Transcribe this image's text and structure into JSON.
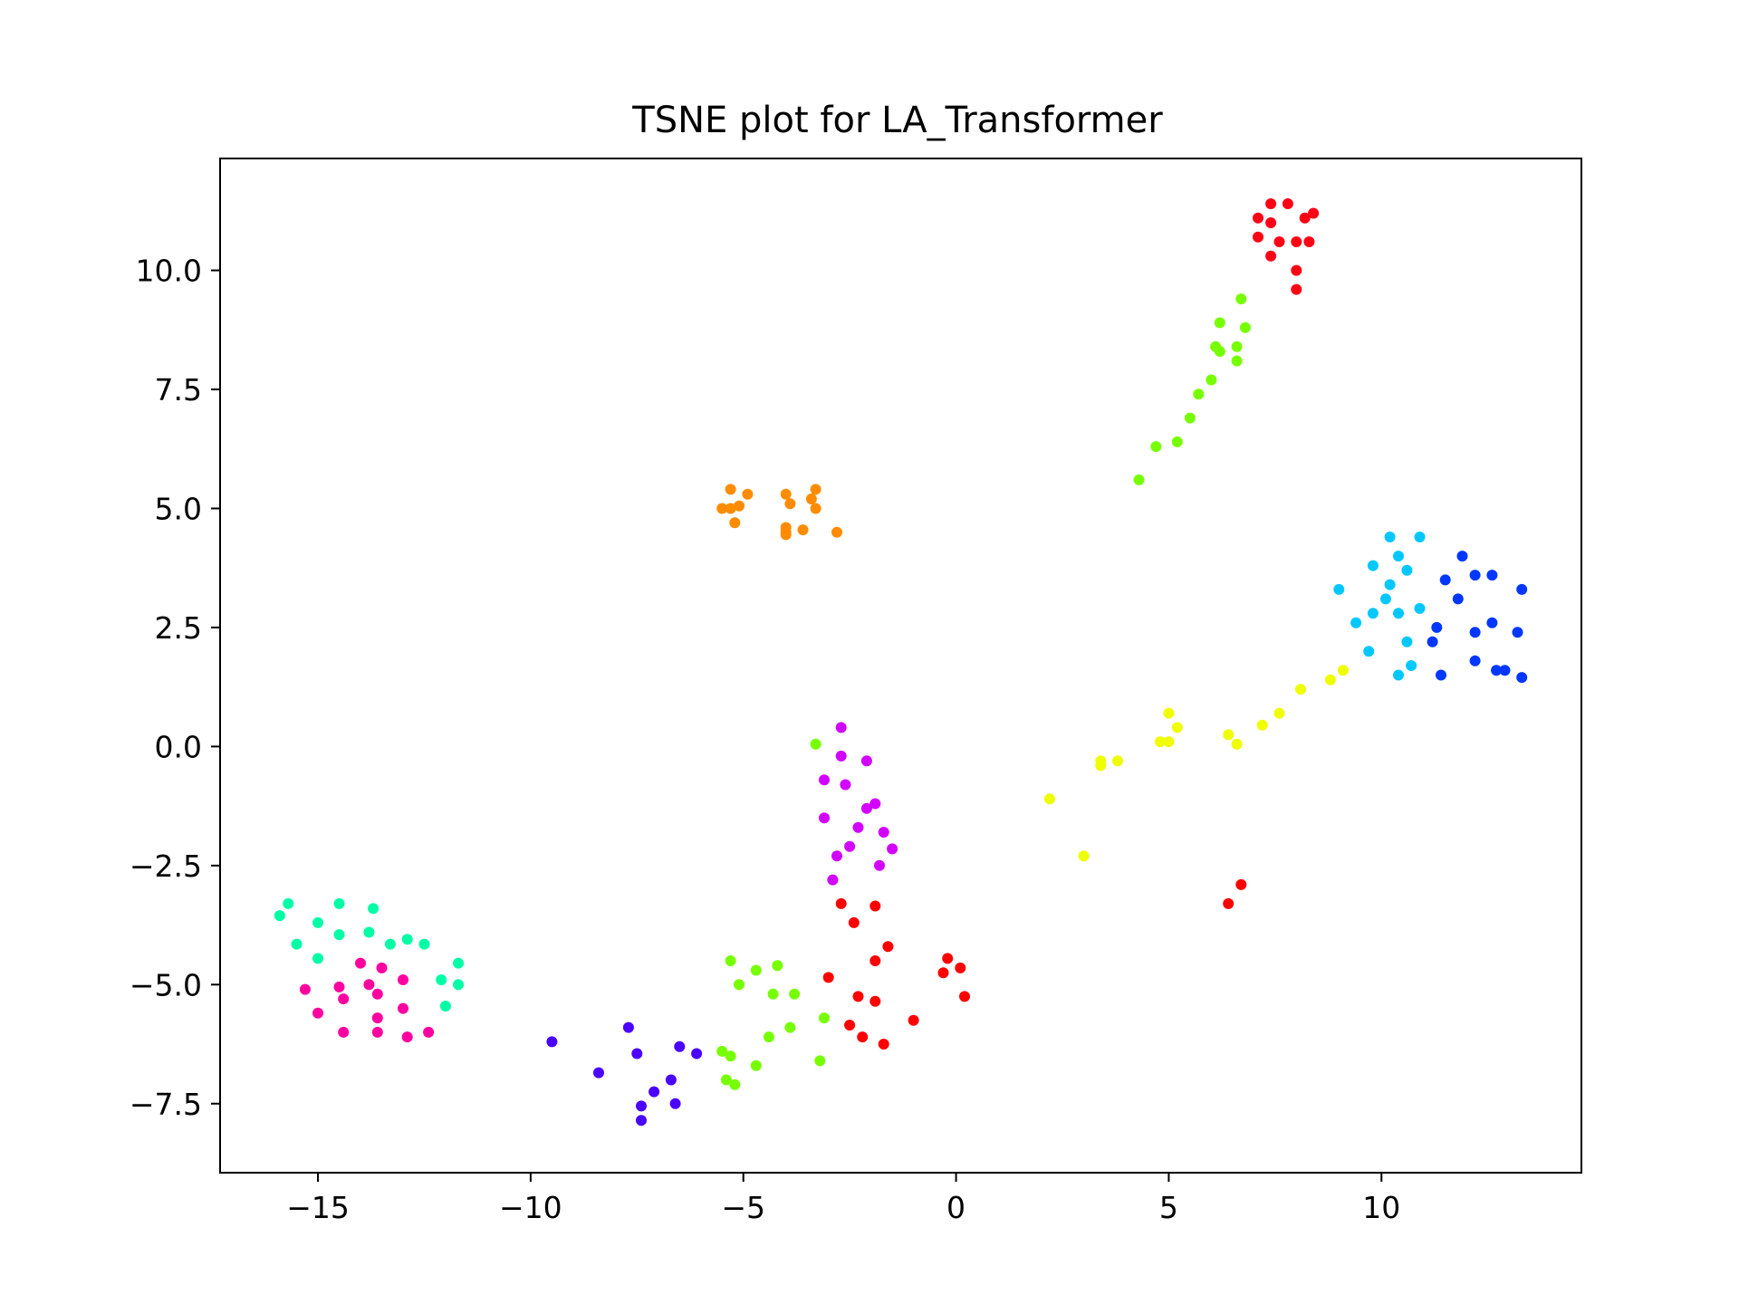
{
  "chart_data": {
    "type": "scatter",
    "title": "TSNE plot for LA_Transformer",
    "xlabel": "",
    "ylabel": "",
    "xlim": [
      -17.3,
      14.7
    ],
    "ylim": [
      -8.95,
      12.35
    ],
    "xticks": [
      -15,
      -10,
      -5,
      0,
      5,
      10
    ],
    "xtick_labels": [
      "−15",
      "−10",
      "−5",
      "0",
      "5",
      "10"
    ],
    "yticks": [
      -7.5,
      -5.0,
      -2.5,
      0.0,
      2.5,
      5.0,
      7.5,
      10.0
    ],
    "ytick_labels": [
      "−7.5",
      "−5.0",
      "−2.5",
      "0.0",
      "2.5",
      "5.0",
      "7.5",
      "10.0"
    ],
    "grid": false,
    "legend": "none",
    "series": [
      {
        "color": "#ff0015",
        "points": [
          [
            7.1,
            11.1
          ],
          [
            7.4,
            11.4
          ],
          [
            7.8,
            11.4
          ],
          [
            8.4,
            11.2
          ],
          [
            7.4,
            11.0
          ],
          [
            8.2,
            11.1
          ],
          [
            7.1,
            10.7
          ],
          [
            7.6,
            10.6
          ],
          [
            8.0,
            10.6
          ],
          [
            8.3,
            10.6
          ],
          [
            7.4,
            10.3
          ],
          [
            8.0,
            10.0
          ],
          [
            8.0,
            9.6
          ]
        ]
      },
      {
        "color": "#77ff00",
        "points": [
          [
            6.7,
            9.4
          ],
          [
            6.2,
            8.9
          ],
          [
            6.8,
            8.8
          ],
          [
            6.1,
            8.4
          ],
          [
            6.2,
            8.3
          ],
          [
            6.6,
            8.4
          ],
          [
            6.6,
            8.1
          ],
          [
            6.0,
            7.7
          ],
          [
            5.7,
            7.4
          ],
          [
            5.5,
            6.9
          ],
          [
            5.2,
            6.4
          ],
          [
            4.7,
            6.3
          ],
          [
            4.3,
            5.6
          ],
          [
            -3.3,
            0.05
          ],
          [
            -5.3,
            -4.5
          ],
          [
            -4.7,
            -4.7
          ],
          [
            -4.2,
            -4.6
          ],
          [
            -5.1,
            -5.0
          ],
          [
            -4.3,
            -5.2
          ],
          [
            -3.8,
            -5.2
          ],
          [
            -3.1,
            -5.7
          ],
          [
            -4.4,
            -6.1
          ],
          [
            -3.9,
            -5.9
          ],
          [
            -5.5,
            -6.4
          ],
          [
            -5.3,
            -6.5
          ],
          [
            -4.7,
            -6.7
          ],
          [
            -3.2,
            -6.6
          ],
          [
            -5.4,
            -7.0
          ],
          [
            -5.2,
            -7.1
          ]
        ]
      },
      {
        "color": "#ff8c00",
        "points": [
          [
            -5.3,
            5.4
          ],
          [
            -3.3,
            5.4
          ],
          [
            -4.9,
            5.3
          ],
          [
            -4.0,
            5.3
          ],
          [
            -3.4,
            5.2
          ],
          [
            -3.9,
            5.1
          ],
          [
            -5.1,
            5.05
          ],
          [
            -5.5,
            5.0
          ],
          [
            -5.3,
            5.0
          ],
          [
            -3.3,
            5.0
          ],
          [
            -5.2,
            4.7
          ],
          [
            -4.0,
            4.6
          ],
          [
            -3.6,
            4.55
          ],
          [
            -2.8,
            4.5
          ],
          [
            -4.0,
            4.45
          ],
          [
            -4.0,
            4.5
          ]
        ]
      },
      {
        "color": "#00c8ff",
        "points": [
          [
            10.2,
            4.4
          ],
          [
            10.9,
            4.4
          ],
          [
            10.4,
            4.0
          ],
          [
            9.8,
            3.8
          ],
          [
            10.6,
            3.7
          ],
          [
            10.2,
            3.4
          ],
          [
            9.0,
            3.3
          ],
          [
            10.1,
            3.1
          ],
          [
            9.8,
            2.8
          ],
          [
            10.4,
            2.8
          ],
          [
            10.9,
            2.9
          ],
          [
            9.4,
            2.6
          ],
          [
            10.6,
            2.2
          ],
          [
            9.7,
            2.0
          ],
          [
            10.7,
            1.7
          ],
          [
            10.4,
            1.5
          ]
        ]
      },
      {
        "color": "#0037ff",
        "points": [
          [
            11.9,
            4.0
          ],
          [
            11.5,
            3.5
          ],
          [
            12.2,
            3.6
          ],
          [
            12.6,
            3.6
          ],
          [
            13.3,
            3.3
          ],
          [
            11.8,
            3.1
          ],
          [
            11.3,
            2.5
          ],
          [
            12.6,
            2.6
          ],
          [
            12.2,
            2.4
          ],
          [
            13.2,
            2.4
          ],
          [
            11.2,
            2.2
          ],
          [
            12.2,
            1.8
          ],
          [
            12.7,
            1.6
          ],
          [
            12.9,
            1.6
          ],
          [
            11.4,
            1.5
          ],
          [
            13.3,
            1.45
          ]
        ]
      },
      {
        "color": "#f0ff00",
        "points": [
          [
            9.1,
            1.6
          ],
          [
            8.8,
            1.4
          ],
          [
            8.1,
            1.2
          ],
          [
            7.6,
            0.7
          ],
          [
            5.0,
            0.7
          ],
          [
            7.2,
            0.45
          ],
          [
            5.2,
            0.4
          ],
          [
            6.4,
            0.25
          ],
          [
            4.8,
            0.1
          ],
          [
            5.0,
            0.1
          ],
          [
            6.6,
            0.05
          ],
          [
            3.8,
            -0.3
          ],
          [
            3.4,
            -0.3
          ],
          [
            3.4,
            -0.4
          ],
          [
            2.2,
            -1.1
          ],
          [
            3.0,
            -2.3
          ]
        ]
      },
      {
        "color": "#d200ff",
        "points": [
          [
            -2.7,
            0.4
          ],
          [
            -2.7,
            -0.2
          ],
          [
            -2.1,
            -0.3
          ],
          [
            -3.1,
            -0.7
          ],
          [
            -2.6,
            -0.8
          ],
          [
            -1.9,
            -1.2
          ],
          [
            -2.1,
            -1.3
          ],
          [
            -3.1,
            -1.5
          ],
          [
            -2.3,
            -1.7
          ],
          [
            -1.7,
            -1.8
          ],
          [
            -2.5,
            -2.1
          ],
          [
            -1.5,
            -2.15
          ],
          [
            -2.8,
            -2.3
          ],
          [
            -1.8,
            -2.5
          ],
          [
            -2.9,
            -2.8
          ]
        ]
      },
      {
        "color": "#ff0000",
        "points": [
          [
            6.7,
            -2.9
          ],
          [
            6.4,
            -3.3
          ],
          [
            -2.7,
            -3.3
          ],
          [
            -1.9,
            -3.35
          ],
          [
            -2.4,
            -3.7
          ],
          [
            -1.6,
            -4.2
          ],
          [
            -0.2,
            -4.45
          ],
          [
            -1.9,
            -4.5
          ],
          [
            0.1,
            -4.65
          ],
          [
            -0.3,
            -4.75
          ],
          [
            -3.0,
            -4.85
          ],
          [
            -2.3,
            -5.25
          ],
          [
            0.2,
            -5.25
          ],
          [
            -1.9,
            -5.35
          ],
          [
            -1.0,
            -5.75
          ],
          [
            -2.5,
            -5.85
          ],
          [
            -2.2,
            -6.1
          ],
          [
            -1.7,
            -6.25
          ]
        ]
      },
      {
        "color": "#00ffa5",
        "points": [
          [
            -15.7,
            -3.3
          ],
          [
            -14.5,
            -3.3
          ],
          [
            -13.7,
            -3.4
          ],
          [
            -15.9,
            -3.55
          ],
          [
            -15.0,
            -3.7
          ],
          [
            -14.5,
            -3.95
          ],
          [
            -13.8,
            -3.9
          ],
          [
            -12.9,
            -4.05
          ],
          [
            -15.5,
            -4.15
          ],
          [
            -13.3,
            -4.15
          ],
          [
            -12.5,
            -4.15
          ],
          [
            -15.0,
            -4.45
          ],
          [
            -11.7,
            -4.55
          ],
          [
            -12.1,
            -4.9
          ],
          [
            -11.7,
            -5.0
          ],
          [
            -12.0,
            -5.45
          ]
        ]
      },
      {
        "color": "#ff00a0",
        "points": [
          [
            -14.0,
            -4.55
          ],
          [
            -13.5,
            -4.65
          ],
          [
            -13.0,
            -4.9
          ],
          [
            -14.5,
            -5.05
          ],
          [
            -13.8,
            -5.0
          ],
          [
            -15.3,
            -5.1
          ],
          [
            -13.6,
            -5.2
          ],
          [
            -14.4,
            -5.3
          ],
          [
            -13.0,
            -5.5
          ],
          [
            -15.0,
            -5.6
          ],
          [
            -13.6,
            -5.7
          ],
          [
            -14.4,
            -6.0
          ],
          [
            -13.6,
            -6.0
          ],
          [
            -12.4,
            -6.0
          ],
          [
            -12.9,
            -6.1
          ]
        ]
      },
      {
        "color": "#4b00ff",
        "points": [
          [
            -7.7,
            -5.9
          ],
          [
            -9.5,
            -6.2
          ],
          [
            -6.5,
            -6.3
          ],
          [
            -7.5,
            -6.45
          ],
          [
            -6.1,
            -6.45
          ],
          [
            -8.4,
            -6.85
          ],
          [
            -6.7,
            -7.0
          ],
          [
            -7.1,
            -7.25
          ],
          [
            -7.4,
            -7.55
          ],
          [
            -6.6,
            -7.5
          ],
          [
            -7.4,
            -7.85
          ]
        ]
      }
    ]
  }
}
